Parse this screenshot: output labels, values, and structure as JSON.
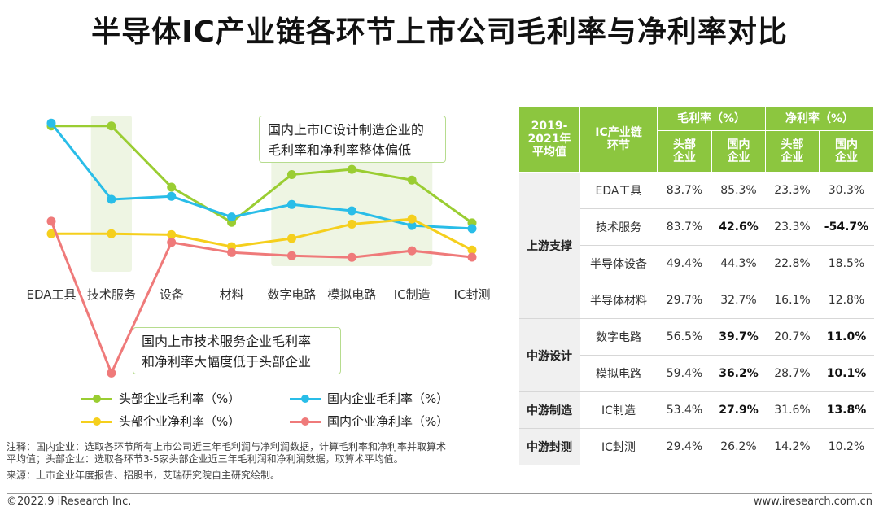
{
  "page": {
    "title": "半导体IC产业链各环节上市公司毛利率与净利率对比",
    "callout_top": [
      "国内上市IC设计制造企业的",
      "毛利率和净利率整体偏低"
    ],
    "callout_bottom": [
      "国内上市技术服务企业毛利率",
      "和净利率大幅度低于头部企业"
    ],
    "note_lines": [
      "注释：国内企业：选取各环节所有上市公司近三年毛利润与净利润数据，计算毛利率和净利率并取算术",
      "平均值；头部企业：选取各环节3-5家头部企业近三年毛利润和净利润数据，取算术平均值。",
      "来源：上市企业年度报告、招股书，艾瑞研究院自主研究绘制。"
    ],
    "footer_left": "©2022.9 iResearch Inc.",
    "footer_right": "www.iresearch.com.cn"
  },
  "chart_data": {
    "type": "line",
    "categories": [
      "EDA工具",
      "技术服务",
      "设备",
      "材料",
      "数字电路",
      "模拟电路",
      "IC制造",
      "IC封测"
    ],
    "series": [
      {
        "name": "头部企业毛利率（%）",
        "color": "#9acd32",
        "values": [
          83.7,
          83.7,
          49.4,
          29.7,
          56.5,
          59.4,
          53.4,
          29.4
        ]
      },
      {
        "name": "国内企业毛利率（%）",
        "color": "#29bde8",
        "values": [
          85.3,
          42.6,
          44.3,
          32.7,
          39.7,
          36.2,
          27.9,
          26.2
        ]
      },
      {
        "name": "头部企业净利率（%）",
        "color": "#f5cf1d",
        "values": [
          23.3,
          23.3,
          22.8,
          16.1,
          20.7,
          28.7,
          31.6,
          14.2
        ]
      },
      {
        "name": "国内企业净利率（%）",
        "color": "#ef7a7a",
        "values": [
          30.3,
          -54.7,
          18.5,
          12.8,
          11.0,
          10.1,
          13.8,
          10.2
        ]
      }
    ],
    "ylim": [
      -60,
      95
    ],
    "highlight_bands": [
      [
        1,
        1
      ],
      [
        4,
        6
      ]
    ],
    "grid": false
  },
  "table": {
    "header": {
      "period": "2019-2021年平均值",
      "segment": "IC产业链环节",
      "gross": "毛利率（%）",
      "net": "净利率（%）",
      "lead": "头部企业",
      "domestic": "国内企业"
    },
    "groups": [
      {
        "name": "上游支撑",
        "rows": [
          {
            "item": "EDA工具",
            "v": [
              "83.7%",
              "85.3%",
              "23.3%",
              "30.3%"
            ],
            "bold": [
              false,
              false,
              false,
              false
            ]
          },
          {
            "item": "技术服务",
            "v": [
              "83.7%",
              "42.6%",
              "23.3%",
              "-54.7%"
            ],
            "bold": [
              false,
              true,
              false,
              true
            ]
          },
          {
            "item": "半导体设备",
            "v": [
              "49.4%",
              "44.3%",
              "22.8%",
              "18.5%"
            ],
            "bold": [
              false,
              false,
              false,
              false
            ]
          },
          {
            "item": "半导体材料",
            "v": [
              "29.7%",
              "32.7%",
              "16.1%",
              "12.8%"
            ],
            "bold": [
              false,
              false,
              false,
              false
            ]
          }
        ]
      },
      {
        "name": "中游设计",
        "rows": [
          {
            "item": "数字电路",
            "v": [
              "56.5%",
              "39.7%",
              "20.7%",
              "11.0%"
            ],
            "bold": [
              false,
              true,
              false,
              true
            ]
          },
          {
            "item": "模拟电路",
            "v": [
              "59.4%",
              "36.2%",
              "28.7%",
              "10.1%"
            ],
            "bold": [
              false,
              true,
              false,
              true
            ]
          }
        ]
      },
      {
        "name": "中游制造",
        "rows": [
          {
            "item": "IC制造",
            "v": [
              "53.4%",
              "27.9%",
              "31.6%",
              "13.8%"
            ],
            "bold": [
              false,
              true,
              false,
              true
            ]
          }
        ]
      },
      {
        "name": "中游封测",
        "rows": [
          {
            "item": "IC封测",
            "v": [
              "29.4%",
              "26.2%",
              "14.2%",
              "10.2%"
            ],
            "bold": [
              false,
              false,
              false,
              false
            ]
          }
        ]
      }
    ]
  }
}
